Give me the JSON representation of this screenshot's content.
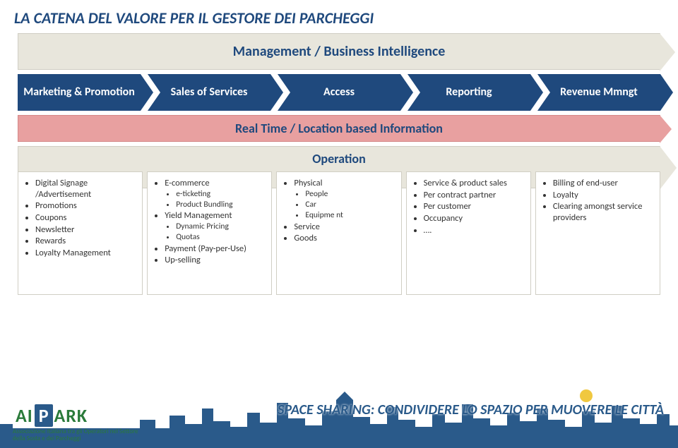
{
  "title": "LA CATENA DEL VALORE PER IL GESTORE DEI PARCHEGGI",
  "top_banner": "Management / Business Intelligence",
  "chevrons": [
    "Marketing & Promotion",
    "Sales of Services",
    "Access",
    "Reporting",
    "Revenue Mmngt"
  ],
  "pink_banner": "Real Time / Location based Information",
  "operation_label": "Operation",
  "columns": [
    {
      "items": [
        {
          "text": "Digital Signage /Advertisement"
        },
        {
          "text": "Promotions"
        },
        {
          "text": "Coupons"
        },
        {
          "text": "Newsletter"
        },
        {
          "text": "Rewards"
        },
        {
          "text": "Loyalty Management"
        }
      ]
    },
    {
      "items": [
        {
          "text": "E-commerce",
          "sub": [
            "e-ticketing",
            "Product Bundling"
          ]
        },
        {
          "text": "Yield Management",
          "sub": [
            "Dynamic Pricing",
            "Quotas"
          ]
        },
        {
          "text": "Payment (Pay-per-Use)"
        },
        {
          "text": "Up-selling"
        }
      ]
    },
    {
      "items": [
        {
          "text": "Physical",
          "sub": [
            "People",
            "Car",
            "Equipme nt"
          ]
        },
        {
          "text": "Service"
        },
        {
          "text": "Goods"
        }
      ]
    },
    {
      "items": [
        {
          "text": "Service & product sales"
        },
        {
          "text": "Per contract partner"
        },
        {
          "text": "Per customer"
        },
        {
          "text": "Occupancy"
        },
        {
          "text": "…."
        }
      ]
    },
    {
      "items": [
        {
          "text": "Billing of end-user"
        },
        {
          "text": "Loyalty"
        },
        {
          "text": "Clearing amongst service providers"
        }
      ]
    }
  ],
  "colors": {
    "title": "#1f497d",
    "chevron_bg": "#1f497d",
    "chevron_text": "#ffffff",
    "banner_bg": "#e8e6dc",
    "pink_bg": "#e8a0a0",
    "skyline": "#2a5a8a"
  },
  "footer": {
    "tagline": "SPACE SHARING: CONDIVIDERE LO SPAZIO PER MUOVERE LE CITTÀ",
    "logo": {
      "ai": "AI",
      "p": "P",
      "ark": "ARK"
    },
    "logo_sub": "Associazione Italiana tra gli Operatori nel Settore della Sosta e dei Parcheggi"
  }
}
